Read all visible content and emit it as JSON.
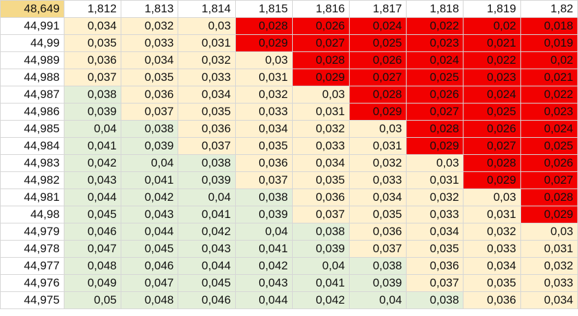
{
  "corner": "48,649",
  "columns": [
    "1,812",
    "1,813",
    "1,814",
    "1,815",
    "1,816",
    "1,817",
    "1,818",
    "1,819",
    "1,82"
  ],
  "colors": {
    "green": "#e3efd9",
    "cream": "#fff1cf",
    "red": "#f20000",
    "white": "#ffffff"
  },
  "rows": [
    {
      "label": "44,991",
      "cells": [
        {
          "v": "0,034",
          "c": "cream"
        },
        {
          "v": "0,032",
          "c": "cream"
        },
        {
          "v": "0,03",
          "c": "cream"
        },
        {
          "v": "0,028",
          "c": "red"
        },
        {
          "v": "0,026",
          "c": "red"
        },
        {
          "v": "0,024",
          "c": "red"
        },
        {
          "v": "0,022",
          "c": "red"
        },
        {
          "v": "0,02",
          "c": "red"
        },
        {
          "v": "0,018",
          "c": "red"
        }
      ]
    },
    {
      "label": "44,99",
      "cells": [
        {
          "v": "0,035",
          "c": "cream"
        },
        {
          "v": "0,033",
          "c": "cream"
        },
        {
          "v": "0,031",
          "c": "cream"
        },
        {
          "v": "0,029",
          "c": "red"
        },
        {
          "v": "0,027",
          "c": "red"
        },
        {
          "v": "0,025",
          "c": "red"
        },
        {
          "v": "0,023",
          "c": "red"
        },
        {
          "v": "0,021",
          "c": "red"
        },
        {
          "v": "0,019",
          "c": "red"
        }
      ]
    },
    {
      "label": "44,989",
      "cells": [
        {
          "v": "0,036",
          "c": "cream"
        },
        {
          "v": "0,034",
          "c": "cream"
        },
        {
          "v": "0,032",
          "c": "cream"
        },
        {
          "v": "0,03",
          "c": "cream"
        },
        {
          "v": "0,028",
          "c": "red"
        },
        {
          "v": "0,026",
          "c": "red"
        },
        {
          "v": "0,024",
          "c": "red"
        },
        {
          "v": "0,022",
          "c": "red"
        },
        {
          "v": "0,02",
          "c": "red"
        }
      ]
    },
    {
      "label": "44,988",
      "cells": [
        {
          "v": "0,037",
          "c": "cream"
        },
        {
          "v": "0,035",
          "c": "cream"
        },
        {
          "v": "0,033",
          "c": "cream"
        },
        {
          "v": "0,031",
          "c": "cream"
        },
        {
          "v": "0,029",
          "c": "red"
        },
        {
          "v": "0,027",
          "c": "red"
        },
        {
          "v": "0,025",
          "c": "red"
        },
        {
          "v": "0,023",
          "c": "red"
        },
        {
          "v": "0,021",
          "c": "red"
        }
      ]
    },
    {
      "label": "44,987",
      "cells": [
        {
          "v": "0,038",
          "c": "green"
        },
        {
          "v": "0,036",
          "c": "cream"
        },
        {
          "v": "0,034",
          "c": "cream"
        },
        {
          "v": "0,032",
          "c": "cream"
        },
        {
          "v": "0,03",
          "c": "cream"
        },
        {
          "v": "0,028",
          "c": "red"
        },
        {
          "v": "0,026",
          "c": "red"
        },
        {
          "v": "0,024",
          "c": "red"
        },
        {
          "v": "0,022",
          "c": "red"
        }
      ]
    },
    {
      "label": "44,986",
      "cells": [
        {
          "v": "0,039",
          "c": "green"
        },
        {
          "v": "0,037",
          "c": "cream"
        },
        {
          "v": "0,035",
          "c": "cream"
        },
        {
          "v": "0,033",
          "c": "cream"
        },
        {
          "v": "0,031",
          "c": "cream"
        },
        {
          "v": "0,029",
          "c": "red"
        },
        {
          "v": "0,027",
          "c": "red"
        },
        {
          "v": "0,025",
          "c": "red"
        },
        {
          "v": "0,023",
          "c": "red"
        }
      ]
    },
    {
      "label": "44,985",
      "cells": [
        {
          "v": "0,04",
          "c": "green"
        },
        {
          "v": "0,038",
          "c": "green"
        },
        {
          "v": "0,036",
          "c": "cream"
        },
        {
          "v": "0,034",
          "c": "cream"
        },
        {
          "v": "0,032",
          "c": "cream"
        },
        {
          "v": "0,03",
          "c": "cream"
        },
        {
          "v": "0,028",
          "c": "red"
        },
        {
          "v": "0,026",
          "c": "red"
        },
        {
          "v": "0,024",
          "c": "red"
        }
      ]
    },
    {
      "label": "44,984",
      "cells": [
        {
          "v": "0,041",
          "c": "green"
        },
        {
          "v": "0,039",
          "c": "green"
        },
        {
          "v": "0,037",
          "c": "cream"
        },
        {
          "v": "0,035",
          "c": "cream"
        },
        {
          "v": "0,033",
          "c": "cream"
        },
        {
          "v": "0,031",
          "c": "cream"
        },
        {
          "v": "0,029",
          "c": "red"
        },
        {
          "v": "0,027",
          "c": "red"
        },
        {
          "v": "0,025",
          "c": "red"
        }
      ]
    },
    {
      "label": "44,983",
      "cells": [
        {
          "v": "0,042",
          "c": "green"
        },
        {
          "v": "0,04",
          "c": "green"
        },
        {
          "v": "0,038",
          "c": "green"
        },
        {
          "v": "0,036",
          "c": "cream"
        },
        {
          "v": "0,034",
          "c": "cream"
        },
        {
          "v": "0,032",
          "c": "cream"
        },
        {
          "v": "0,03",
          "c": "cream"
        },
        {
          "v": "0,028",
          "c": "red"
        },
        {
          "v": "0,026",
          "c": "red"
        }
      ]
    },
    {
      "label": "44,982",
      "cells": [
        {
          "v": "0,043",
          "c": "green"
        },
        {
          "v": "0,041",
          "c": "green"
        },
        {
          "v": "0,039",
          "c": "green"
        },
        {
          "v": "0,037",
          "c": "cream"
        },
        {
          "v": "0,035",
          "c": "cream"
        },
        {
          "v": "0,033",
          "c": "cream"
        },
        {
          "v": "0,031",
          "c": "cream"
        },
        {
          "v": "0,029",
          "c": "red"
        },
        {
          "v": "0,027",
          "c": "red"
        }
      ]
    },
    {
      "label": "44,981",
      "cells": [
        {
          "v": "0,044",
          "c": "green"
        },
        {
          "v": "0,042",
          "c": "green"
        },
        {
          "v": "0,04",
          "c": "green"
        },
        {
          "v": "0,038",
          "c": "green"
        },
        {
          "v": "0,036",
          "c": "cream"
        },
        {
          "v": "0,034",
          "c": "cream"
        },
        {
          "v": "0,032",
          "c": "cream"
        },
        {
          "v": "0,03",
          "c": "cream"
        },
        {
          "v": "0,028",
          "c": "red"
        }
      ]
    },
    {
      "label": "44,98",
      "cells": [
        {
          "v": "0,045",
          "c": "green"
        },
        {
          "v": "0,043",
          "c": "green"
        },
        {
          "v": "0,041",
          "c": "green"
        },
        {
          "v": "0,039",
          "c": "green"
        },
        {
          "v": "0,037",
          "c": "cream"
        },
        {
          "v": "0,035",
          "c": "cream"
        },
        {
          "v": "0,033",
          "c": "cream"
        },
        {
          "v": "0,031",
          "c": "cream"
        },
        {
          "v": "0,029",
          "c": "red"
        }
      ]
    },
    {
      "label": "44,979",
      "cells": [
        {
          "v": "0,046",
          "c": "green"
        },
        {
          "v": "0,044",
          "c": "green"
        },
        {
          "v": "0,042",
          "c": "green"
        },
        {
          "v": "0,04",
          "c": "green"
        },
        {
          "v": "0,038",
          "c": "green"
        },
        {
          "v": "0,036",
          "c": "cream"
        },
        {
          "v": "0,034",
          "c": "cream"
        },
        {
          "v": "0,032",
          "c": "cream"
        },
        {
          "v": "0,03",
          "c": "cream"
        }
      ]
    },
    {
      "label": "44,978",
      "cells": [
        {
          "v": "0,047",
          "c": "green"
        },
        {
          "v": "0,045",
          "c": "green"
        },
        {
          "v": "0,043",
          "c": "green"
        },
        {
          "v": "0,041",
          "c": "green"
        },
        {
          "v": "0,039",
          "c": "green"
        },
        {
          "v": "0,037",
          "c": "cream"
        },
        {
          "v": "0,035",
          "c": "cream"
        },
        {
          "v": "0,033",
          "c": "cream"
        },
        {
          "v": "0,031",
          "c": "cream"
        }
      ]
    },
    {
      "label": "44,977",
      "cells": [
        {
          "v": "0,048",
          "c": "green"
        },
        {
          "v": "0,046",
          "c": "green"
        },
        {
          "v": "0,044",
          "c": "green"
        },
        {
          "v": "0,042",
          "c": "green"
        },
        {
          "v": "0,04",
          "c": "green"
        },
        {
          "v": "0,038",
          "c": "green"
        },
        {
          "v": "0,036",
          "c": "cream"
        },
        {
          "v": "0,034",
          "c": "cream"
        },
        {
          "v": "0,032",
          "c": "cream"
        }
      ]
    },
    {
      "label": "44,976",
      "cells": [
        {
          "v": "0,049",
          "c": "green"
        },
        {
          "v": "0,047",
          "c": "green"
        },
        {
          "v": "0,045",
          "c": "green"
        },
        {
          "v": "0,043",
          "c": "green"
        },
        {
          "v": "0,041",
          "c": "green"
        },
        {
          "v": "0,039",
          "c": "green"
        },
        {
          "v": "0,037",
          "c": "cream"
        },
        {
          "v": "0,035",
          "c": "cream"
        },
        {
          "v": "0,033",
          "c": "cream"
        }
      ]
    },
    {
      "label": "44,975",
      "cells": [
        {
          "v": "0,05",
          "c": "green"
        },
        {
          "v": "0,048",
          "c": "green"
        },
        {
          "v": "0,046",
          "c": "green"
        },
        {
          "v": "0,044",
          "c": "green"
        },
        {
          "v": "0,042",
          "c": "green"
        },
        {
          "v": "0,04",
          "c": "green"
        },
        {
          "v": "0,038",
          "c": "green"
        },
        {
          "v": "0,036",
          "c": "cream"
        },
        {
          "v": "0,034",
          "c": "cream"
        }
      ]
    }
  ]
}
